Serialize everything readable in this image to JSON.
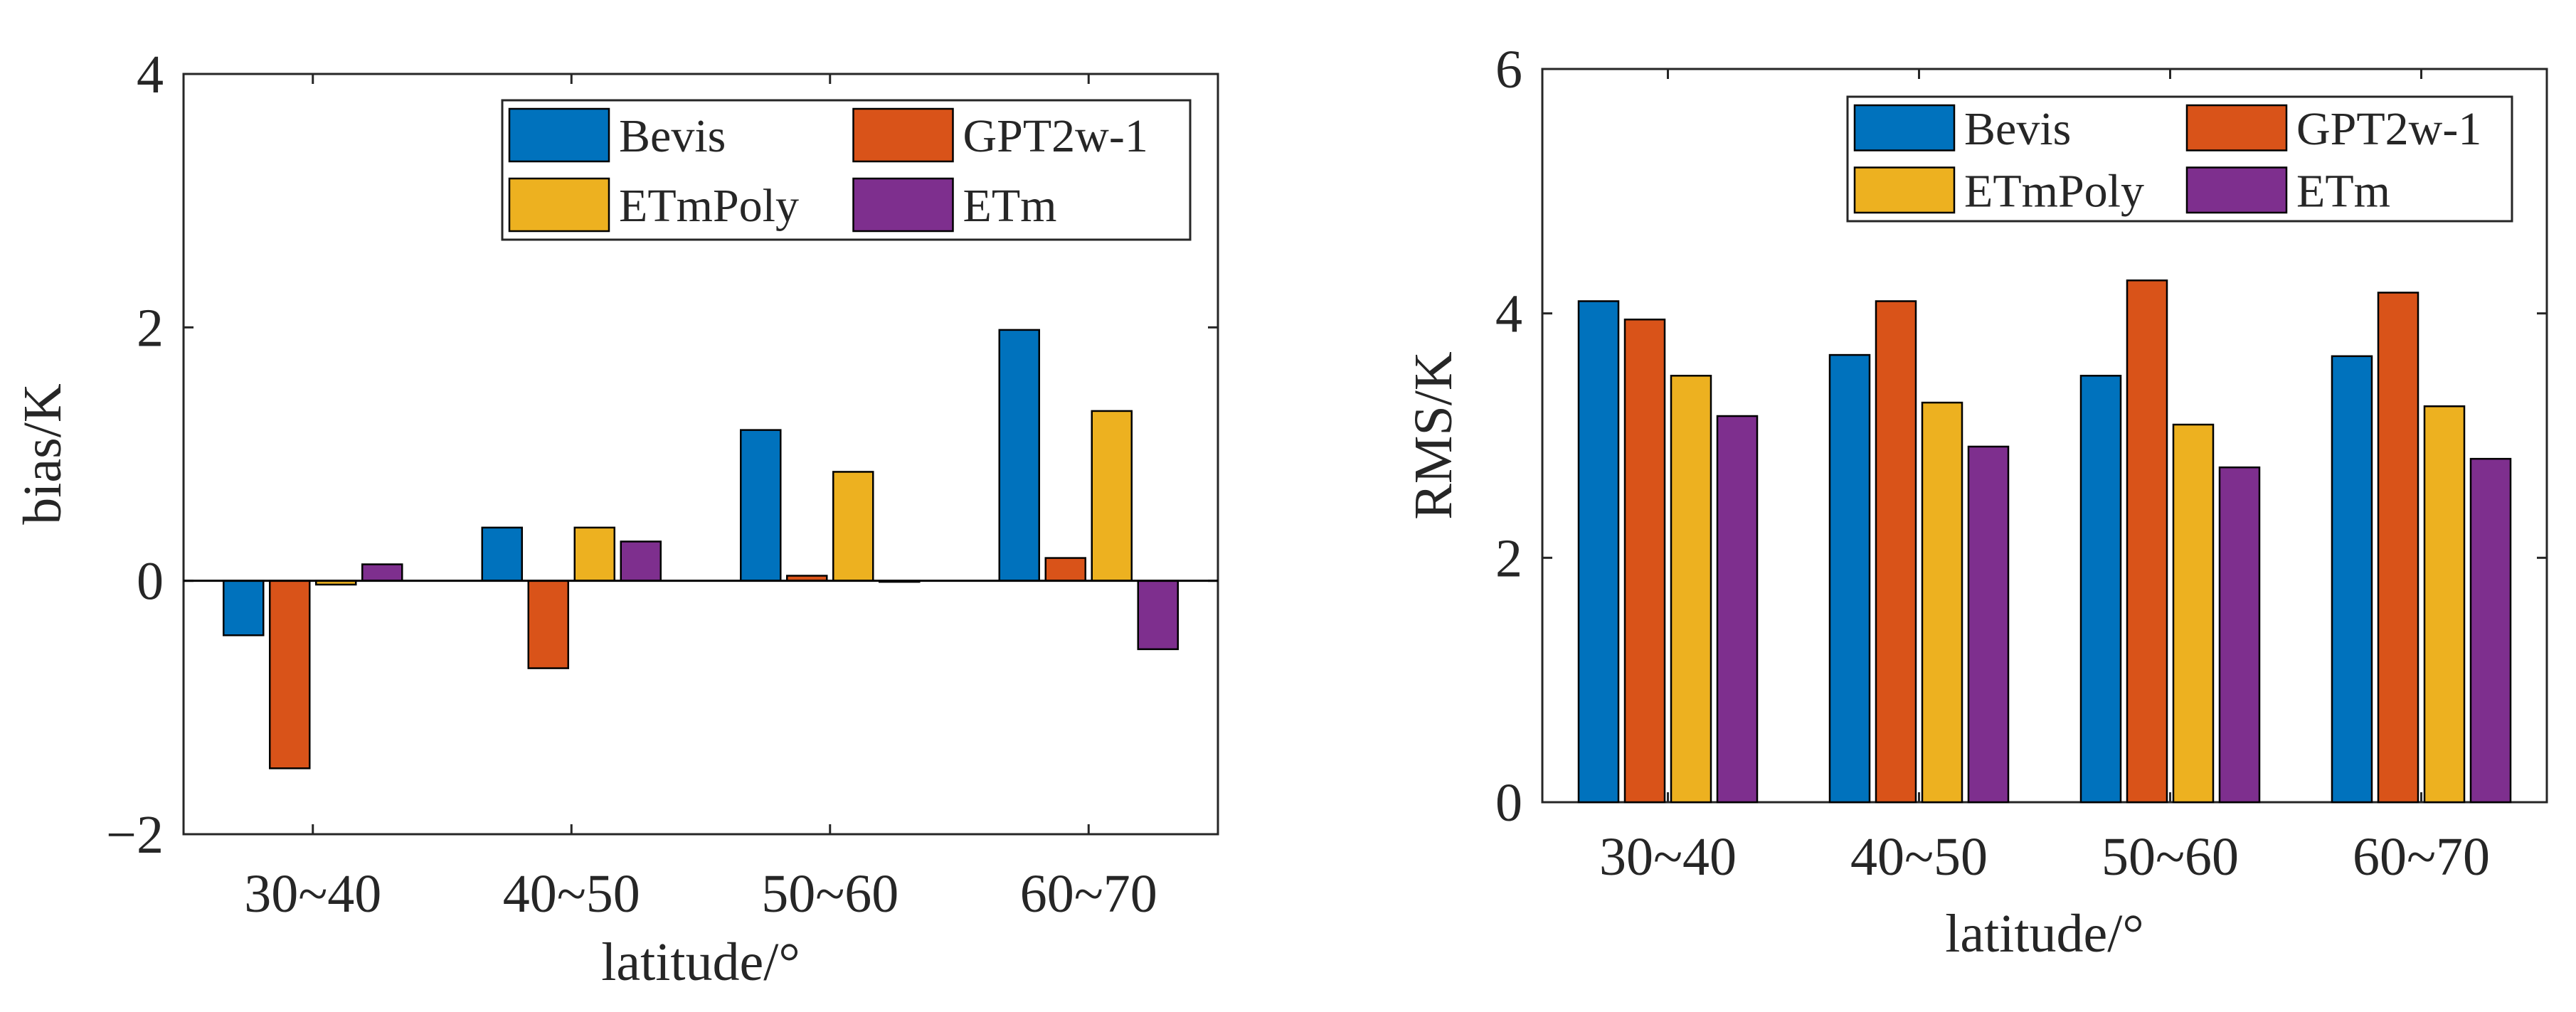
{
  "chart_data": [
    {
      "type": "bar",
      "categories": [
        "30~40",
        "40~50",
        "50~60",
        "60~70"
      ],
      "series": [
        {
          "name": "Bevis",
          "color": "#0072BD",
          "values": [
            -0.43,
            0.42,
            1.19,
            1.98
          ]
        },
        {
          "name": "GPT2w-1",
          "color": "#D95319",
          "values": [
            -1.48,
            -0.69,
            0.04,
            0.18
          ]
        },
        {
          "name": "ETmPoly",
          "color": "#EDB120",
          "values": [
            -0.03,
            0.42,
            0.86,
            1.34
          ]
        },
        {
          "name": "ETm",
          "color": "#7E2F8E",
          "values": [
            0.13,
            0.31,
            0.0,
            -0.54
          ]
        }
      ],
      "xlabel": "latitude/°",
      "ylabel": "bias/K",
      "ylim": [
        -2,
        4
      ],
      "yticks": [
        -2,
        0,
        2,
        4
      ],
      "ytick_labels": [
        "−2",
        "0",
        "2",
        "4"
      ],
      "grid": false,
      "legend_position": "top-right",
      "legend_columns": 2
    },
    {
      "type": "bar",
      "categories": [
        "30~40",
        "40~50",
        "50~60",
        "60~70"
      ],
      "series": [
        {
          "name": "Bevis",
          "color": "#0072BD",
          "values": [
            4.1,
            3.66,
            3.49,
            3.65
          ]
        },
        {
          "name": "GPT2w-1",
          "color": "#D95319",
          "values": [
            3.95,
            4.1,
            4.27,
            4.17
          ]
        },
        {
          "name": "ETmPoly",
          "color": "#EDB120",
          "values": [
            3.49,
            3.27,
            3.09,
            3.24
          ]
        },
        {
          "name": "ETm",
          "color": "#7E2F8E",
          "values": [
            3.16,
            2.91,
            2.74,
            2.81
          ]
        }
      ],
      "xlabel": "latitude/°",
      "ylabel": "RMS/K",
      "ylim": [
        0,
        6
      ],
      "yticks": [
        0,
        2,
        4,
        6
      ],
      "ytick_labels": [
        "0",
        "2",
        "4",
        "6"
      ],
      "grid": false,
      "legend_position": "top",
      "legend_columns": 2
    }
  ]
}
